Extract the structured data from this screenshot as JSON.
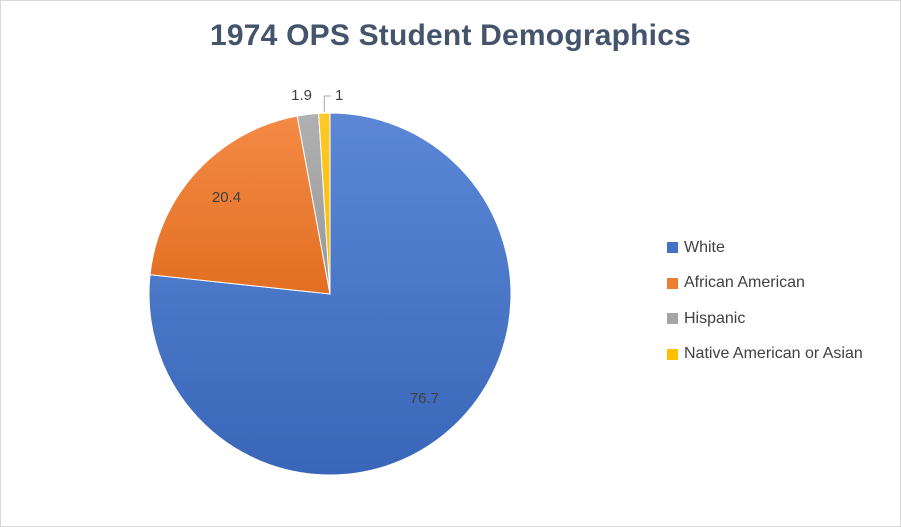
{
  "chart_data": {
    "type": "pie",
    "title": "1974 OPS Student Demographics",
    "categories": [
      "White",
      "African American",
      "Hispanic",
      "Native American or Asian"
    ],
    "values": [
      76.7,
      20.4,
      1.9,
      1
    ],
    "data_labels": [
      "76.7",
      "20.4",
      "1.9",
      "1"
    ],
    "colors": [
      "#4472c4",
      "#ed7d31",
      "#a5a5a5",
      "#ffc000"
    ],
    "legend_position": "right",
    "start_angle": "12 o'clock",
    "direction": "clockwise"
  }
}
